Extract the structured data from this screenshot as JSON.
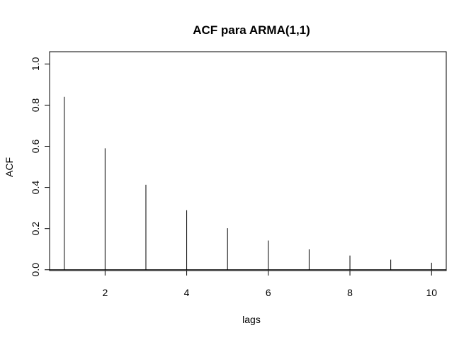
{
  "chart_data": {
    "type": "bar",
    "title": "ACF para ARMA(1,1)",
    "xlabel": "lags",
    "ylabel": "ACF",
    "x": [
      1,
      2,
      3,
      4,
      5,
      6,
      7,
      8,
      9,
      10
    ],
    "values": [
      0.84,
      0.59,
      0.413,
      0.289,
      0.202,
      0.142,
      0.099,
      0.069,
      0.049,
      0.034
    ],
    "xlim": [
      0.64,
      10.36
    ],
    "ylim": [
      0,
      1.0
    ],
    "x_ticks": [
      "2",
      "4",
      "6",
      "8",
      "10"
    ],
    "y_ticks": [
      "0.0",
      "0.2",
      "0.4",
      "0.6",
      "0.8",
      "1.0"
    ],
    "baseline": 0,
    "grid": false,
    "bar_color": "#000000"
  }
}
